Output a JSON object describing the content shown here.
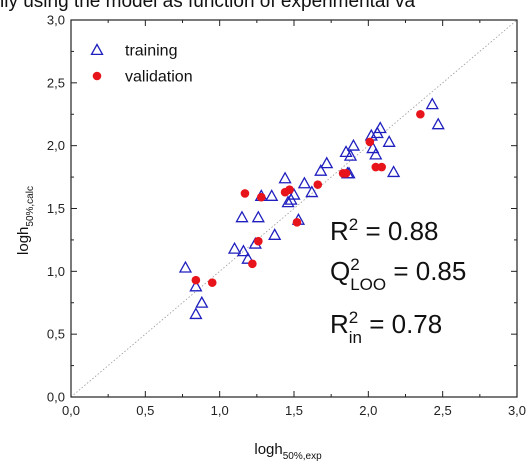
{
  "caption": "lly using the model as function of experimental va",
  "chart_data": {
    "type": "scatter",
    "xlabel": {
      "main": "logh",
      "sub": "50%,exp"
    },
    "ylabel": {
      "main": "logh",
      "sub": "50%,calc"
    },
    "xlim": [
      0.0,
      3.0
    ],
    "ylim": [
      0.0,
      3.0
    ],
    "x_ticks": [
      "0,0",
      "0,5",
      "1,0",
      "1,5",
      "2,0",
      "2,5",
      "3,0"
    ],
    "y_ticks": [
      "0,0",
      "0,5",
      "1,0",
      "1,5",
      "2,0",
      "2,5",
      "3,0"
    ],
    "grid": false,
    "legend_position": "top-left",
    "reference_line": {
      "style": "dotted",
      "from": [
        0,
        0
      ],
      "to": [
        3,
        3
      ]
    },
    "series": [
      {
        "name": "training",
        "marker": "open-triangle",
        "color": "#1f1fbf",
        "points": [
          [
            0.77,
            1.03
          ],
          [
            0.84,
            0.88
          ],
          [
            0.84,
            0.66
          ],
          [
            0.88,
            0.75
          ],
          [
            1.1,
            1.18
          ],
          [
            1.15,
            1.43
          ],
          [
            1.16,
            1.16
          ],
          [
            1.19,
            1.1
          ],
          [
            1.24,
            1.22
          ],
          [
            1.26,
            1.43
          ],
          [
            1.28,
            1.6
          ],
          [
            1.35,
            1.6
          ],
          [
            1.37,
            1.29
          ],
          [
            1.44,
            1.74
          ],
          [
            1.46,
            1.55
          ],
          [
            1.48,
            1.57
          ],
          [
            1.5,
            1.61
          ],
          [
            1.53,
            1.41
          ],
          [
            1.57,
            1.7
          ],
          [
            1.62,
            1.63
          ],
          [
            1.68,
            1.8
          ],
          [
            1.72,
            1.86
          ],
          [
            1.85,
            1.95
          ],
          [
            1.86,
            1.78
          ],
          [
            1.87,
            1.78
          ],
          [
            1.88,
            1.92
          ],
          [
            1.9,
            2.0
          ],
          [
            2.02,
            2.08
          ],
          [
            2.03,
            1.98
          ],
          [
            2.05,
            1.93
          ],
          [
            2.06,
            2.1
          ],
          [
            2.08,
            2.14
          ],
          [
            2.14,
            2.03
          ],
          [
            2.17,
            1.79
          ],
          [
            2.43,
            2.33
          ],
          [
            2.47,
            2.17
          ]
        ]
      },
      {
        "name": "validation",
        "marker": "filled-circle",
        "color": "#e8141b",
        "points": [
          [
            0.84,
            0.93
          ],
          [
            0.95,
            0.91
          ],
          [
            1.17,
            1.62
          ],
          [
            1.22,
            1.06
          ],
          [
            1.26,
            1.24
          ],
          [
            1.28,
            1.59
          ],
          [
            1.44,
            1.63
          ],
          [
            1.47,
            1.65
          ],
          [
            1.52,
            1.39
          ],
          [
            1.66,
            1.69
          ],
          [
            1.83,
            1.78
          ],
          [
            1.85,
            1.78
          ],
          [
            2.01,
            2.03
          ],
          [
            2.05,
            1.83
          ],
          [
            2.09,
            1.83
          ],
          [
            2.35,
            2.25
          ]
        ]
      }
    ],
    "annotations": [
      {
        "id": "r2",
        "base": "R",
        "sup": "2",
        "sub": "",
        "value": " = 0.88"
      },
      {
        "id": "q2",
        "base": "Q",
        "sup": "2",
        "sub": "LOO",
        "value": " = 0.85"
      },
      {
        "id": "r2in",
        "base": "R",
        "sup": "2",
        "sub": "in",
        "value": " = 0.78"
      }
    ]
  }
}
